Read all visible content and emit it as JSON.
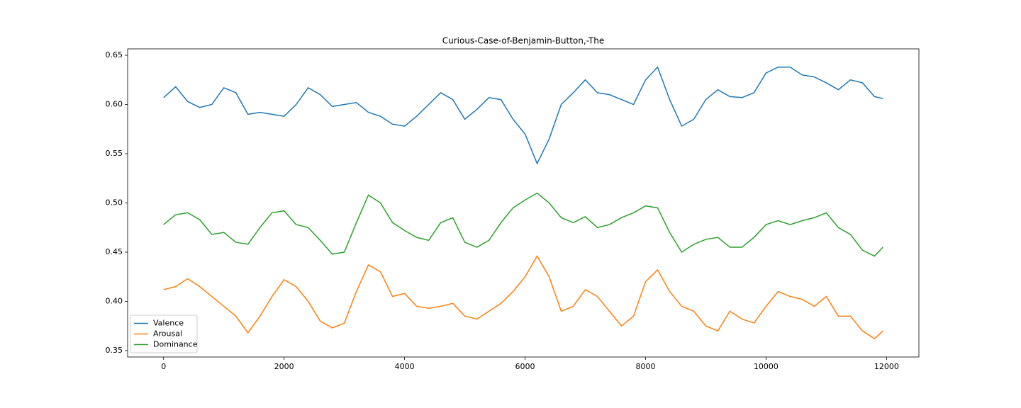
{
  "chart_data": {
    "type": "line",
    "title": "Curious-Case-of-Benjamin-Button,-The",
    "x": [
      0,
      200,
      400,
      600,
      800,
      1000,
      1200,
      1400,
      1600,
      1800,
      2000,
      2200,
      2400,
      2600,
      2800,
      3000,
      3200,
      3400,
      3600,
      3800,
      4000,
      4200,
      4400,
      4600,
      4800,
      5000,
      5200,
      5400,
      5600,
      5800,
      6000,
      6200,
      6400,
      6600,
      6800,
      7000,
      7200,
      7400,
      7600,
      7800,
      8000,
      8200,
      8400,
      8600,
      8800,
      9000,
      9200,
      9400,
      9600,
      9800,
      10000,
      10200,
      10400,
      10600,
      10800,
      11000,
      11200,
      11400,
      11600,
      11800,
      11940
    ],
    "series": [
      {
        "name": "Valence",
        "color": "#1f77b4",
        "values": [
          0.607,
          0.618,
          0.603,
          0.597,
          0.6,
          0.617,
          0.612,
          0.59,
          0.592,
          0.59,
          0.588,
          0.6,
          0.617,
          0.61,
          0.598,
          0.6,
          0.602,
          0.592,
          0.588,
          0.58,
          0.578,
          0.588,
          0.6,
          0.612,
          0.605,
          0.585,
          0.595,
          0.607,
          0.605,
          0.585,
          0.57,
          0.54,
          0.565,
          0.6,
          0.612,
          0.625,
          0.612,
          0.61,
          0.605,
          0.6,
          0.625,
          0.638,
          0.605,
          0.578,
          0.585,
          0.605,
          0.615,
          0.608,
          0.607,
          0.612,
          0.632,
          0.638,
          0.638,
          0.63,
          0.628,
          0.622,
          0.615,
          0.625,
          0.622,
          0.608,
          0.606
        ]
      },
      {
        "name": "Arousal",
        "color": "#ff7f0e",
        "values": [
          0.412,
          0.415,
          0.423,
          0.415,
          0.405,
          0.395,
          0.385,
          0.368,
          0.385,
          0.405,
          0.422,
          0.415,
          0.4,
          0.38,
          0.373,
          0.378,
          0.41,
          0.437,
          0.43,
          0.405,
          0.408,
          0.395,
          0.393,
          0.395,
          0.398,
          0.385,
          0.382,
          0.39,
          0.398,
          0.41,
          0.425,
          0.446,
          0.425,
          0.39,
          0.395,
          0.412,
          0.405,
          0.39,
          0.375,
          0.385,
          0.42,
          0.432,
          0.41,
          0.395,
          0.39,
          0.375,
          0.37,
          0.39,
          0.382,
          0.378,
          0.395,
          0.41,
          0.405,
          0.402,
          0.395,
          0.405,
          0.385,
          0.385,
          0.37,
          0.362,
          0.37
        ]
      },
      {
        "name": "Dominance",
        "color": "#2ca02c",
        "values": [
          0.478,
          0.488,
          0.49,
          0.483,
          0.468,
          0.47,
          0.46,
          0.458,
          0.475,
          0.49,
          0.492,
          0.478,
          0.475,
          0.462,
          0.448,
          0.45,
          0.48,
          0.508,
          0.5,
          0.48,
          0.472,
          0.465,
          0.462,
          0.48,
          0.485,
          0.46,
          0.455,
          0.462,
          0.48,
          0.495,
          0.503,
          0.51,
          0.5,
          0.485,
          0.48,
          0.486,
          0.475,
          0.478,
          0.485,
          0.49,
          0.497,
          0.495,
          0.47,
          0.45,
          0.458,
          0.463,
          0.465,
          0.455,
          0.455,
          0.465,
          0.478,
          0.482,
          0.478,
          0.482,
          0.485,
          0.49,
          0.475,
          0.468,
          0.452,
          0.446,
          0.455
        ]
      }
    ],
    "xlim": [
      -597,
      12537
    ],
    "ylim": [
      0.3435,
      0.6565
    ],
    "xticks": [
      0,
      2000,
      4000,
      6000,
      8000,
      10000,
      12000
    ],
    "yticks": [
      0.35,
      {
        "value": 0.4,
        "label": "0.40"
      },
      0.45,
      {
        "value": 0.5,
        "label": "0.50"
      },
      0.55,
      {
        "value": 0.6,
        "label": "0.60"
      },
      0.65
    ],
    "legend": "lower left"
  }
}
